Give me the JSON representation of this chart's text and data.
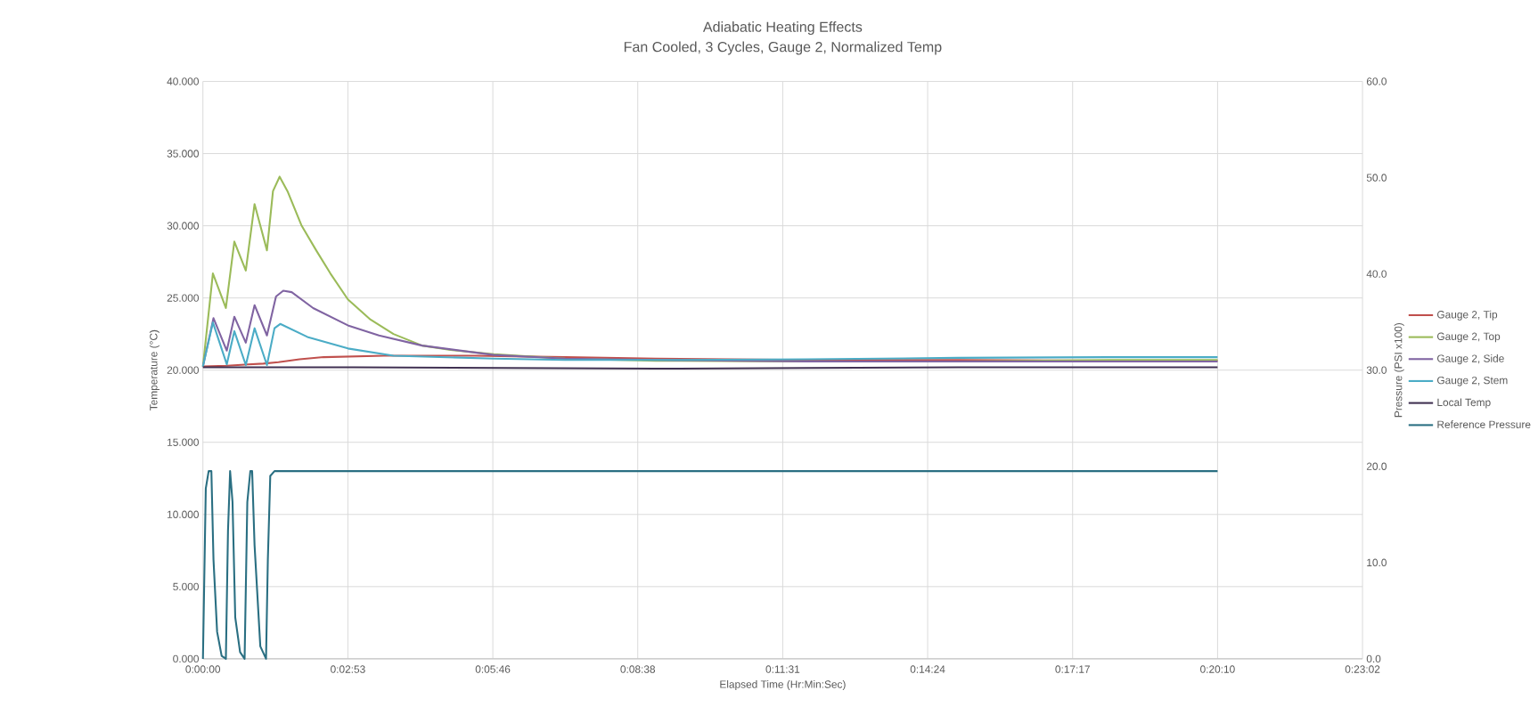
{
  "chart_data": {
    "type": "line",
    "title": "Adiabatic Heating Effects",
    "subtitle": "Fan Cooled, 3 Cycles, Gauge 2, Normalized Temp",
    "xlabel": "Elapsed Time (Hr:Min:Sec)",
    "ylabel": "Temperature (°C)",
    "y2label": "Pressure (PSI x100)",
    "xlim": [
      0,
      0.384
    ],
    "ylim": [
      0,
      40
    ],
    "y2lim": [
      0,
      60
    ],
    "xticks": [
      {
        "value": 0,
        "label": "0:00:00"
      },
      {
        "value": 0.048,
        "label": "0:02:53"
      },
      {
        "value": 0.096,
        "label": "0:05:46"
      },
      {
        "value": 0.144,
        "label": "0:08:38"
      },
      {
        "value": 0.192,
        "label": "0:11:31"
      },
      {
        "value": 0.24,
        "label": "0:14:24"
      },
      {
        "value": 0.288,
        "label": "0:17:17"
      },
      {
        "value": 0.336,
        "label": "0:20:10"
      },
      {
        "value": 0.384,
        "label": "0:23:02"
      }
    ],
    "yticks": [
      {
        "value": 0,
        "label": "0.000"
      },
      {
        "value": 5,
        "label": "5.000"
      },
      {
        "value": 10,
        "label": "10.000"
      },
      {
        "value": 15,
        "label": "15.000"
      },
      {
        "value": 20,
        "label": "20.000"
      },
      {
        "value": 25,
        "label": "25.000"
      },
      {
        "value": 30,
        "label": "30.000"
      },
      {
        "value": 35,
        "label": "35.000"
      },
      {
        "value": 40,
        "label": "40.000"
      }
    ],
    "y2ticks": [
      {
        "value": 0,
        "label": "0.0"
      },
      {
        "value": 10,
        "label": "10.0"
      },
      {
        "value": 20,
        "label": "20.0"
      },
      {
        "value": 30,
        "label": "30.0"
      },
      {
        "value": 40,
        "label": "40.0"
      },
      {
        "value": 50,
        "label": "50.0"
      },
      {
        "value": 60,
        "label": "60.0"
      }
    ],
    "grid": true,
    "legend": "right",
    "series": [
      {
        "name": "Gauge 2, Tip",
        "color": "#c0504d",
        "x": [
          0,
          0.008,
          0.015,
          0.02,
          0.025,
          0.032,
          0.04,
          0.05,
          0.06,
          0.075,
          0.09,
          0.12,
          0.15,
          0.2,
          0.25,
          0.3,
          0.336
        ],
        "values": [
          20.25,
          20.3,
          20.4,
          20.45,
          20.55,
          20.75,
          20.9,
          20.95,
          21.0,
          21.0,
          21.0,
          20.9,
          20.8,
          20.7,
          20.7,
          20.65,
          20.65
        ]
      },
      {
        "name": "Gauge 2, Top",
        "color": "#9bbb59",
        "x": [
          0,
          0.0033,
          0.0076,
          0.0104,
          0.0142,
          0.0171,
          0.0212,
          0.0232,
          0.0254,
          0.028,
          0.0327,
          0.0375,
          0.0422,
          0.048,
          0.0555,
          0.0631,
          0.0726,
          0.082,
          0.0963,
          0.12,
          0.15,
          0.2,
          0.25,
          0.3,
          0.336
        ],
        "values": [
          20.25,
          26.7,
          24.3,
          28.9,
          26.9,
          31.5,
          28.3,
          32.4,
          33.4,
          32.4,
          30.0,
          28.3,
          26.7,
          24.9,
          23.5,
          22.5,
          21.7,
          21.4,
          21.1,
          20.8,
          20.65,
          20.6,
          20.6,
          20.7,
          20.7
        ]
      },
      {
        "name": "Gauge 2, Side",
        "color": "#8064a2",
        "x": [
          0,
          0.0035,
          0.0079,
          0.0104,
          0.0142,
          0.0171,
          0.0212,
          0.0242,
          0.0266,
          0.0294,
          0.0365,
          0.048,
          0.0583,
          0.0726,
          0.0963,
          0.12,
          0.15,
          0.2,
          0.25,
          0.3,
          0.336
        ],
        "values": [
          20.25,
          23.6,
          21.35,
          23.7,
          21.9,
          24.5,
          22.4,
          25.1,
          25.5,
          25.4,
          24.3,
          23.1,
          22.4,
          21.7,
          21.05,
          20.8,
          20.7,
          20.6,
          20.6,
          20.6,
          20.6
        ]
      },
      {
        "name": "Gauge 2, Stem",
        "color": "#4bacc6",
        "x": [
          0,
          0.0033,
          0.0079,
          0.0104,
          0.0142,
          0.0171,
          0.0212,
          0.0237,
          0.0256,
          0.0346,
          0.048,
          0.0631,
          0.0963,
          0.12,
          0.15,
          0.2,
          0.25,
          0.3,
          0.336
        ],
        "values": [
          20.25,
          23.3,
          20.4,
          22.7,
          20.35,
          22.9,
          20.35,
          22.9,
          23.2,
          22.3,
          21.5,
          21.0,
          20.8,
          20.7,
          20.7,
          20.75,
          20.85,
          20.9,
          20.9
        ]
      },
      {
        "name": "Local Temp",
        "color": "#403152",
        "x": [
          0,
          0.05,
          0.1,
          0.15,
          0.2,
          0.25,
          0.3,
          0.336
        ],
        "values": [
          20.2,
          20.2,
          20.15,
          20.1,
          20.15,
          20.2,
          20.2,
          20.2
        ]
      },
      {
        "name": "Reference Pressure",
        "color": "#2a6f82",
        "axis": "y2",
        "x": [
          0,
          0.00095,
          0.0019,
          0.0028,
          0.0035,
          0.0047,
          0.0062,
          0.0076,
          0.0083,
          0.009,
          0.0098,
          0.0107,
          0.0123,
          0.0138,
          0.0147,
          0.0157,
          0.0163,
          0.0171,
          0.019,
          0.0209,
          0.0215,
          0.0223,
          0.0237,
          0.336
        ],
        "values": [
          0,
          17.7,
          19.5,
          19.5,
          10.3,
          2.8,
          0.3,
          0,
          13.3,
          19.5,
          16.3,
          4.3,
          0.7,
          0,
          16.3,
          19.5,
          19.5,
          11.8,
          1.3,
          0,
          10.3,
          19.0,
          19.5,
          19.5
        ]
      }
    ]
  }
}
